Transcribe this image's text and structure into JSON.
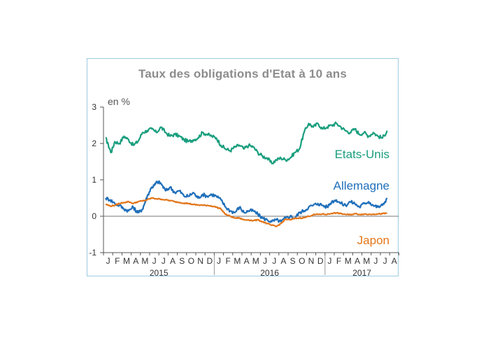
{
  "chart_data": {
    "type": "line",
    "title": "Taux des obligations d'Etat à 10 ans",
    "ylabel": "en %",
    "ylim": [
      -1,
      3
    ],
    "y_ticks": [
      "3",
      "2",
      "1",
      "0",
      "-1"
    ],
    "grid": false,
    "month_labels": [
      "J",
      "F",
      "M",
      "A",
      "M",
      "J",
      "J",
      "A",
      "S",
      "O",
      "N",
      "D",
      "J",
      "F",
      "M",
      "A",
      "M",
      "J",
      "J",
      "A",
      "S",
      "O",
      "N",
      "D",
      "J",
      "F",
      "M",
      "A",
      "M",
      "J",
      "J",
      "A"
    ],
    "years": [
      "2015",
      "2016",
      "2017"
    ],
    "x_index_unit": "month (0 = January 2015)",
    "series": [
      {
        "name": "Etats-Unis",
        "color": "#1a9e7e",
        "x": [
          0,
          0.3,
          0.6,
          1,
          1.5,
          2,
          2.5,
          3,
          3.5,
          4,
          4.5,
          5,
          5.5,
          6,
          6.5,
          7,
          7.5,
          8,
          8.5,
          9,
          9.5,
          10,
          10.5,
          11,
          11.5,
          12,
          12.5,
          13,
          13.5,
          14,
          14.5,
          15,
          15.5,
          16,
          16.5,
          17,
          17.5,
          18,
          18.5,
          19,
          19.5,
          20,
          20.5,
          21,
          21.5,
          22,
          22.5,
          23,
          23.5,
          24,
          24.5,
          25,
          25.5,
          26,
          26.5,
          27,
          27.5,
          28,
          28.5,
          29,
          29.5,
          30,
          30.5
        ],
        "values": [
          2.15,
          1.95,
          1.75,
          2.05,
          2.0,
          2.2,
          2.1,
          1.95,
          2.05,
          2.3,
          2.35,
          2.4,
          2.3,
          2.45,
          2.3,
          2.2,
          2.25,
          2.2,
          2.1,
          2.05,
          2.1,
          2.15,
          2.3,
          2.25,
          2.2,
          2.15,
          1.95,
          1.85,
          1.8,
          1.9,
          1.95,
          1.85,
          1.95,
          1.9,
          1.75,
          1.65,
          1.6,
          1.45,
          1.55,
          1.6,
          1.55,
          1.6,
          1.75,
          1.85,
          2.3,
          2.55,
          2.45,
          2.55,
          2.4,
          2.45,
          2.5,
          2.55,
          2.45,
          2.35,
          2.3,
          2.4,
          2.25,
          2.3,
          2.2,
          2.3,
          2.2,
          2.15,
          2.35
        ]
      },
      {
        "name": "Allemagne",
        "color": "#1f6fba",
        "x": [
          0,
          0.5,
          1,
          1.5,
          2,
          2.5,
          3,
          3.3,
          3.6,
          4,
          4.3,
          4.6,
          5,
          5.3,
          5.6,
          6,
          6.5,
          7,
          7.5,
          8,
          8.5,
          9,
          9.5,
          10,
          10.5,
          11,
          11.5,
          12,
          12.5,
          13,
          13.5,
          14,
          14.5,
          15,
          15.5,
          16,
          16.5,
          17,
          17.5,
          18,
          18.5,
          19,
          19.5,
          20,
          20.5,
          21,
          21.5,
          22,
          22.5,
          23,
          23.5,
          24,
          24.5,
          25,
          25.5,
          26,
          26.5,
          27,
          27.5,
          28,
          28.5,
          29,
          29.5,
          30,
          30.5
        ],
        "values": [
          0.5,
          0.45,
          0.35,
          0.3,
          0.2,
          0.15,
          0.25,
          0.15,
          0.1,
          0.2,
          0.4,
          0.6,
          0.8,
          0.85,
          0.95,
          0.9,
          0.7,
          0.8,
          0.65,
          0.7,
          0.55,
          0.55,
          0.65,
          0.5,
          0.6,
          0.55,
          0.6,
          0.55,
          0.45,
          0.25,
          0.15,
          0.1,
          0.25,
          0.1,
          0.15,
          0.15,
          0.05,
          -0.05,
          -0.1,
          -0.15,
          -0.1,
          -0.15,
          -0.05,
          0.0,
          -0.05,
          0.1,
          0.15,
          0.25,
          0.3,
          0.35,
          0.3,
          0.25,
          0.4,
          0.45,
          0.35,
          0.3,
          0.4,
          0.35,
          0.25,
          0.35,
          0.4,
          0.3,
          0.25,
          0.3,
          0.5
        ]
      },
      {
        "name": "Japon",
        "color": "#e2761a",
        "x": [
          0,
          0.5,
          1,
          1.5,
          2,
          2.5,
          3,
          3.5,
          4,
          4.5,
          5,
          5.5,
          6,
          6.5,
          7,
          7.5,
          8,
          8.5,
          9,
          9.5,
          10,
          10.5,
          11,
          11.5,
          12,
          12.5,
          13,
          13.5,
          14,
          14.5,
          15,
          15.5,
          16,
          16.5,
          17,
          17.5,
          18,
          18.5,
          19,
          19.5,
          20,
          20.5,
          21,
          21.5,
          22,
          22.5,
          23,
          23.5,
          24,
          24.5,
          25,
          25.5,
          26,
          26.5,
          27,
          27.5,
          28,
          28.5,
          29,
          29.5,
          30,
          30.5
        ],
        "values": [
          0.33,
          0.28,
          0.3,
          0.35,
          0.38,
          0.4,
          0.35,
          0.4,
          0.42,
          0.45,
          0.5,
          0.48,
          0.47,
          0.45,
          0.43,
          0.4,
          0.38,
          0.36,
          0.35,
          0.32,
          0.31,
          0.3,
          0.3,
          0.28,
          0.25,
          0.2,
          0.05,
          0.0,
          -0.05,
          -0.05,
          -0.1,
          -0.1,
          -0.12,
          -0.1,
          -0.15,
          -0.2,
          -0.25,
          -0.28,
          -0.2,
          -0.08,
          -0.1,
          -0.06,
          -0.05,
          -0.04,
          0.0,
          0.04,
          0.05,
          0.06,
          0.05,
          0.08,
          0.09,
          0.07,
          0.05,
          0.04,
          0.07,
          0.05,
          0.06,
          0.05,
          0.06,
          0.06,
          0.07,
          0.08
        ]
      }
    ]
  }
}
